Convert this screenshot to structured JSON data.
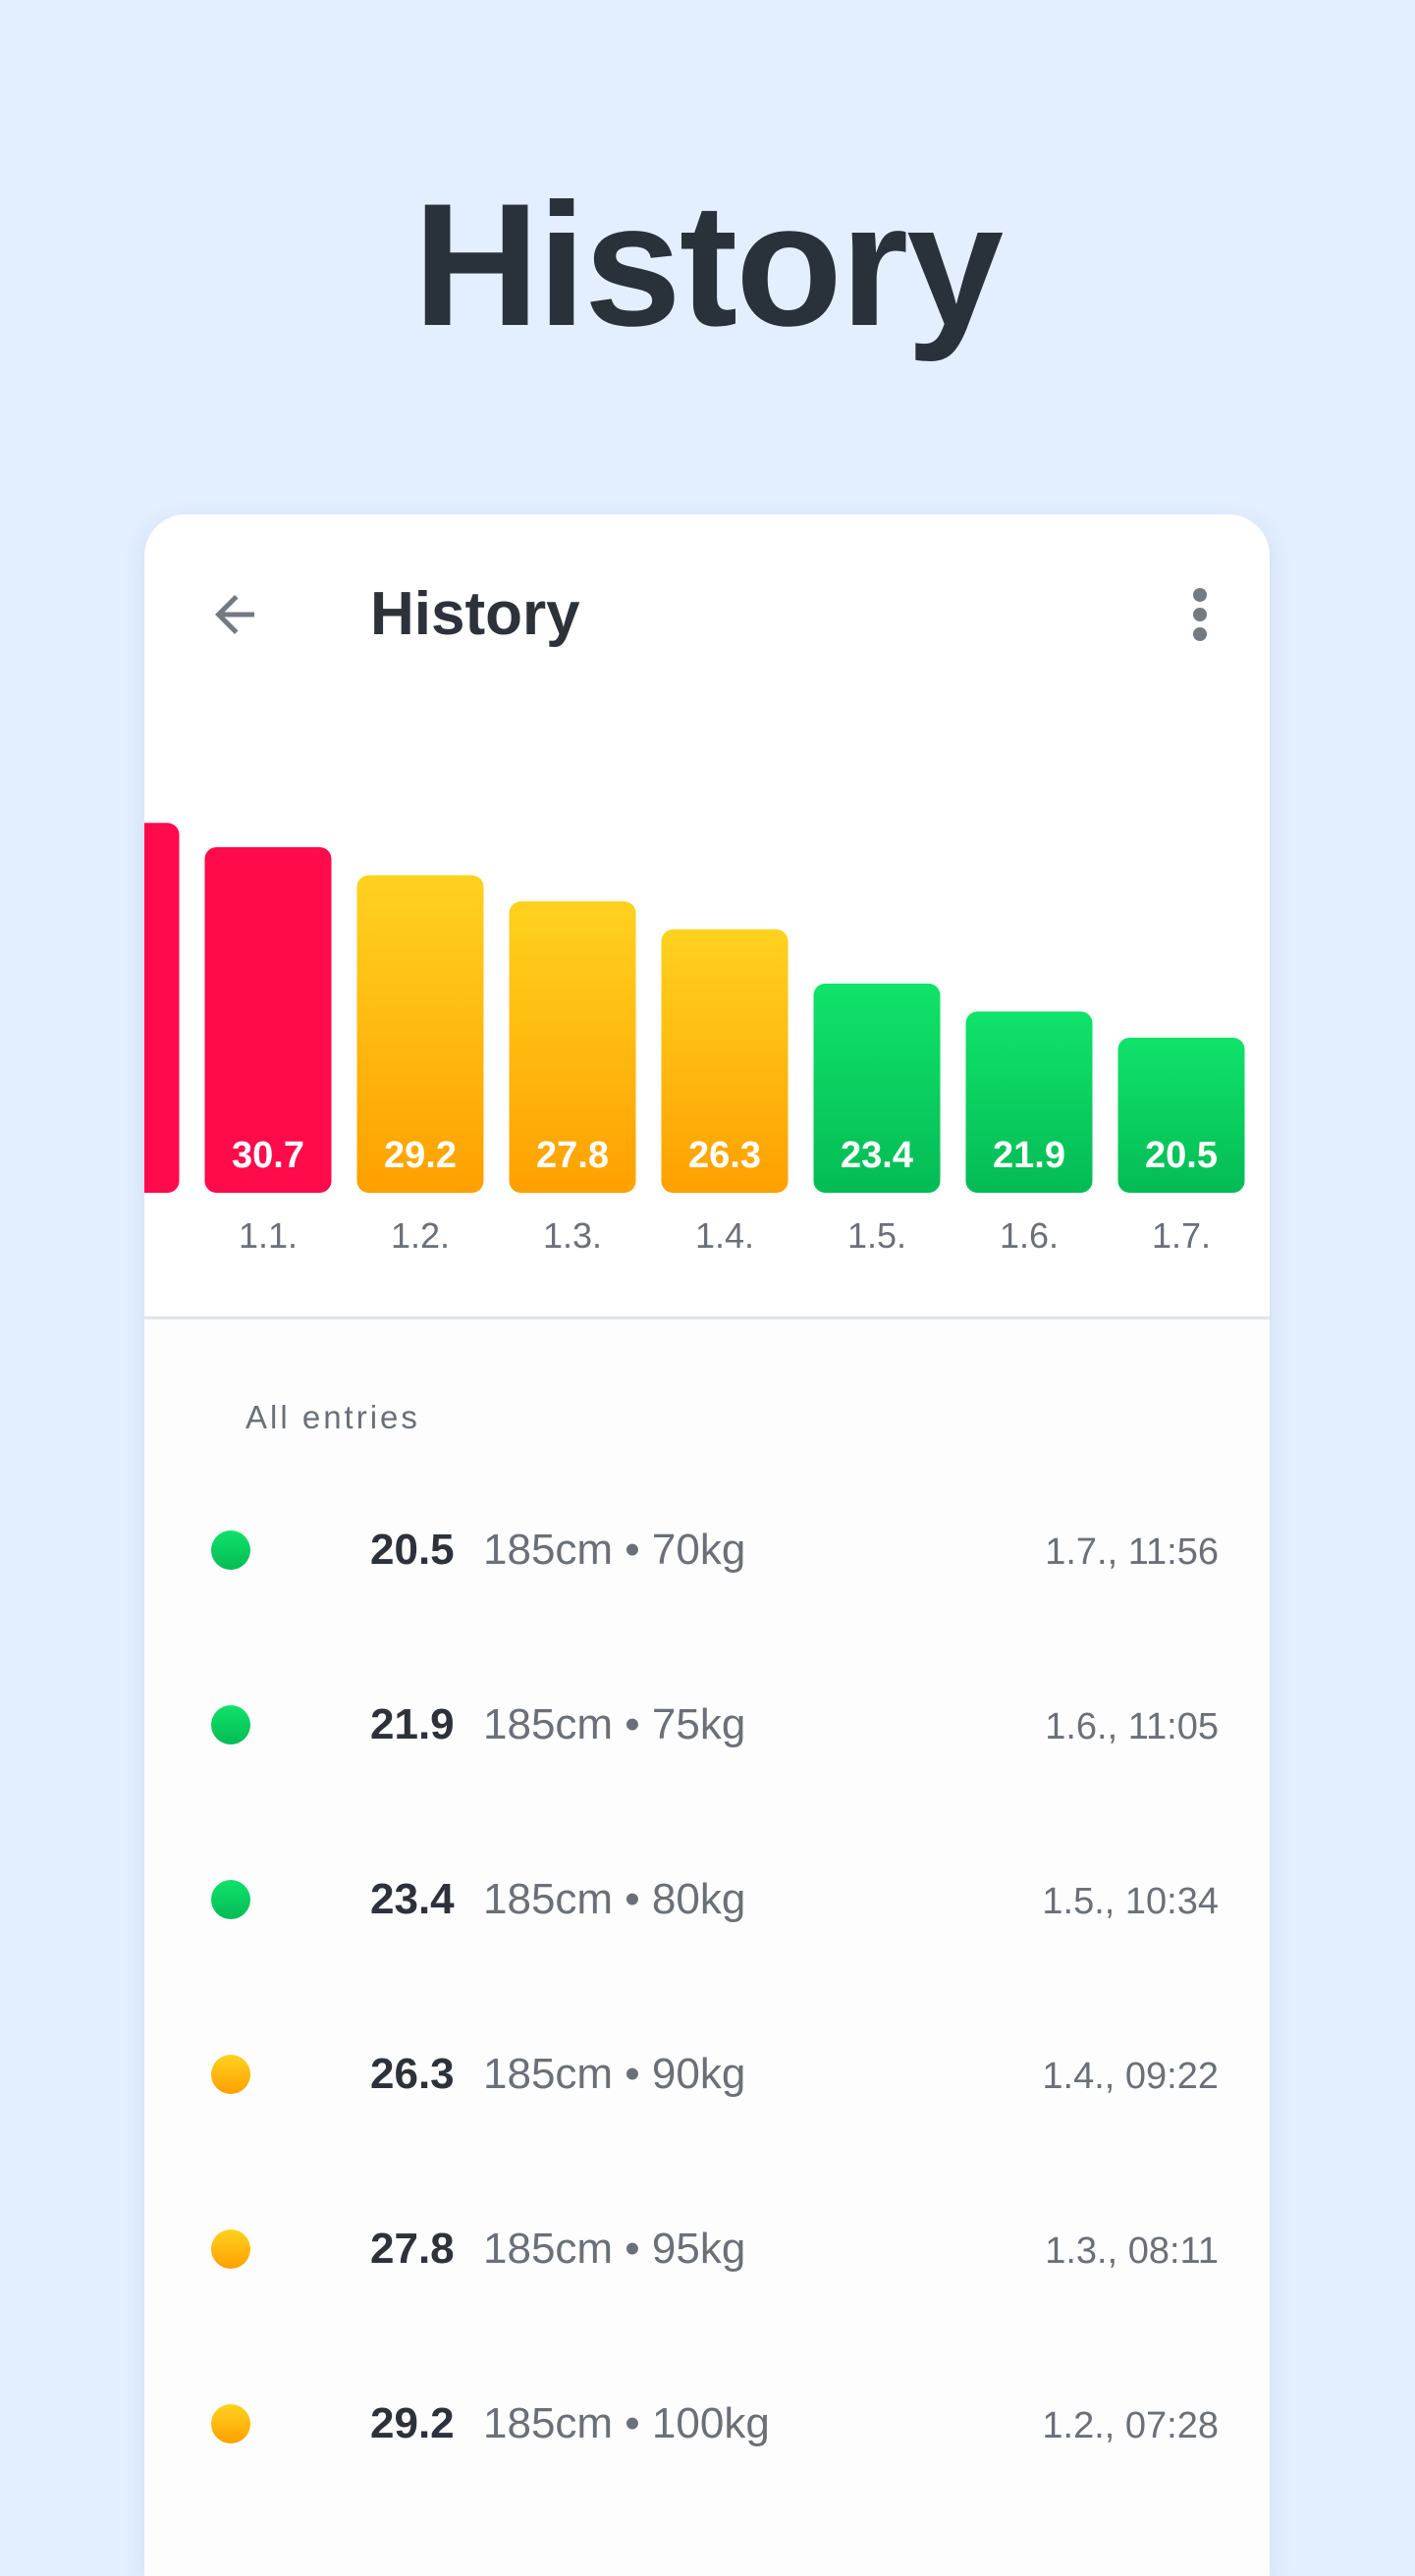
{
  "promo": {
    "title": "History"
  },
  "app_bar": {
    "title": "History",
    "back_icon": "arrow-left-icon",
    "more_icon": "more-vertical-icon"
  },
  "chart_data": {
    "type": "bar",
    "categories": [
      "",
      "1.1.",
      "1.2.",
      "1.3.",
      "1.4.",
      "1.5.",
      "1.6.",
      "1.7."
    ],
    "values": [
      32.0,
      30.7,
      29.2,
      27.8,
      26.3,
      23.4,
      21.9,
      20.5
    ],
    "labels": [
      "",
      "30.7",
      "29.2",
      "27.8",
      "26.3",
      "23.4",
      "21.9",
      "20.5"
    ],
    "status": [
      "obese",
      "obese",
      "overweight",
      "overweight",
      "overweight",
      "normal",
      "normal",
      "normal"
    ],
    "title": "",
    "xlabel": "",
    "ylabel": "",
    "grid": false
  },
  "colors": {
    "obese": "#ff0a4b",
    "overweight_top": "#ffd21f",
    "overweight_bottom": "#ffa000",
    "normal_top": "#10e36a",
    "normal_bottom": "#04bb55"
  },
  "list": {
    "header": "All entries",
    "entries": [
      {
        "bmi": "20.5",
        "detail": "185cm • 70kg",
        "time": "1.7., 11:56",
        "status": "normal"
      },
      {
        "bmi": "21.9",
        "detail": "185cm • 75kg",
        "time": "1.6., 11:05",
        "status": "normal"
      },
      {
        "bmi": "23.4",
        "detail": "185cm • 80kg",
        "time": "1.5., 10:34",
        "status": "normal"
      },
      {
        "bmi": "26.3",
        "detail": "185cm • 90kg",
        "time": "1.4., 09:22",
        "status": "overweight"
      },
      {
        "bmi": "27.8",
        "detail": "185cm • 95kg",
        "time": "1.3., 08:11",
        "status": "overweight"
      },
      {
        "bmi": "29.2",
        "detail": "185cm • 100kg",
        "time": "1.2., 07:28",
        "status": "overweight"
      }
    ]
  }
}
